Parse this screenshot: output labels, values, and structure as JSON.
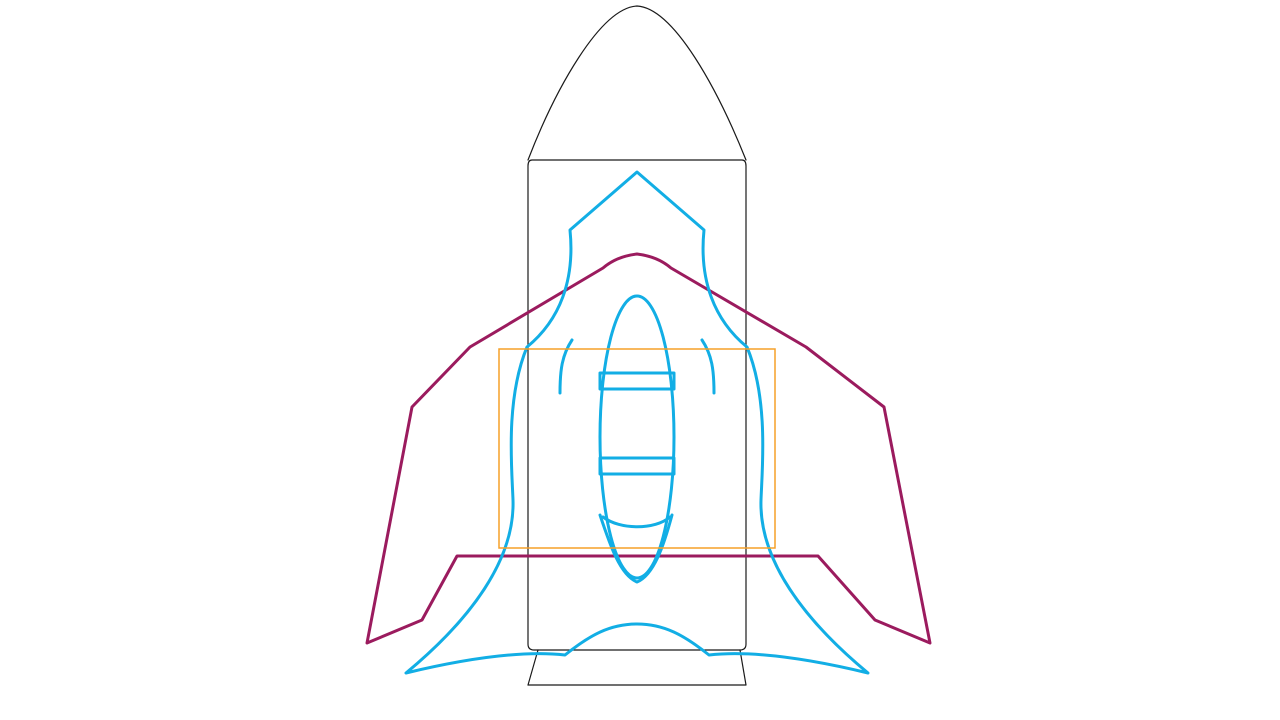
{
  "diagram": {
    "colors": {
      "background": "#ffffff",
      "rocket_outline": "#1a1a1a",
      "wing_shape": "#9b1b5e",
      "orbiter_shape": "#12aee5",
      "highlight_box": "#f5a028"
    }
  }
}
